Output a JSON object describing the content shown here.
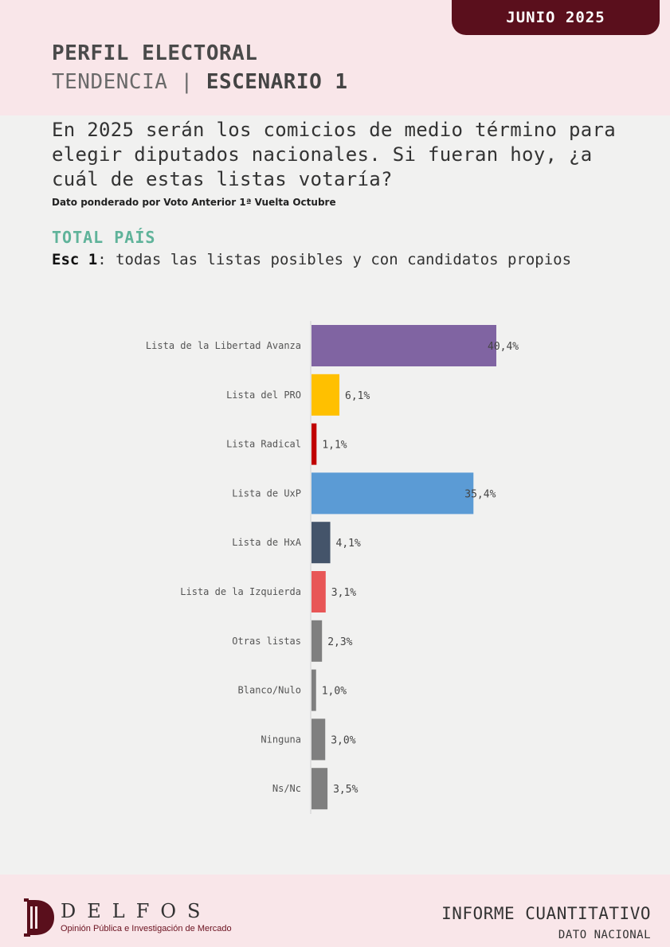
{
  "header": {
    "date_badge": "JUNIO 2025",
    "title": "PERFIL ELECTORAL",
    "subtitle_left": "TENDENCIA | ",
    "subtitle_right": "ESCENARIO 1"
  },
  "question": "En 2025 serán los comicios de medio término para elegir diputados nacionales. Si fueran hoy, ¿a cuál de estas listas votaría?",
  "note": "Dato ponderado por Voto Anterior 1ª Vuelta Octubre",
  "section": {
    "title": "TOTAL PAÍS",
    "scenario_bold": "Esc 1",
    "scenario_text": ": todas las listas posibles y con candidatos propios"
  },
  "chart_data": {
    "type": "bar",
    "orientation": "horizontal",
    "categories": [
      "Lista de la Libertad Avanza",
      "Lista del PRO",
      "Lista Radical",
      "Lista de UxP",
      "Lista de HxA",
      "Lista de la Izquierda",
      "Otras listas",
      "Blanco/Nulo",
      "Ninguna",
      "Ns/Nc"
    ],
    "values": [
      40.4,
      6.1,
      1.1,
      35.4,
      4.1,
      3.1,
      2.3,
      1.0,
      3.0,
      3.5
    ],
    "value_labels": [
      "40,4%",
      "6,1%",
      "1,1%",
      "35,4%",
      "4,1%",
      "3,1%",
      "2,3%",
      "1,0%",
      "3,0%",
      "3,5%"
    ],
    "colors": [
      "#8064a2",
      "#ffc000",
      "#c00000",
      "#5b9bd5",
      "#44546a",
      "#e85656",
      "#7f7f7f",
      "#7f7f7f",
      "#7f7f7f",
      "#7f7f7f"
    ],
    "xlim": [
      0,
      41
    ],
    "grid": false
  },
  "footer": {
    "logo_name": "DELFOS",
    "logo_tagline": "Opinión Pública e Investigación de Mercado",
    "report_type": "INFORME CUANTITATIVO",
    "report_scope": "DATO NACIONAL"
  }
}
